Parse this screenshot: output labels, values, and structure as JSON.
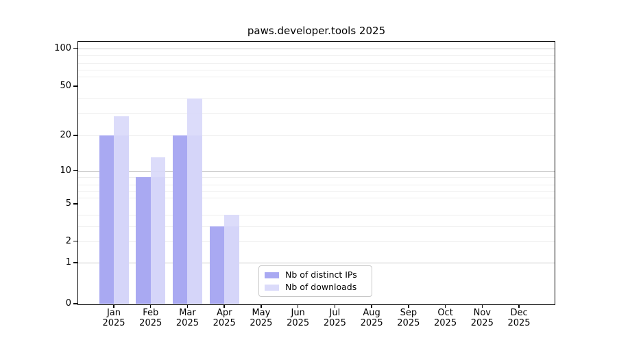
{
  "title": "paws.developer.tools 2025",
  "chart_data": {
    "type": "bar",
    "title": "paws.developer.tools 2025",
    "categories": [
      "Jan 2025",
      "Feb 2025",
      "Mar 2025",
      "Apr 2025",
      "May 2025",
      "Jun 2025",
      "Jul 2025",
      "Aug 2025",
      "Sep 2025",
      "Oct 2025",
      "Nov 2025",
      "Dec 2025"
    ],
    "month_labels": [
      "Jan",
      "Feb",
      "Mar",
      "Apr",
      "May",
      "Jun",
      "Jul",
      "Aug",
      "Sep",
      "Oct",
      "Nov",
      "Dec"
    ],
    "year_label": "2025",
    "series": [
      {
        "name": "Nb of distinct IPs",
        "color": "#a9a9f2",
        "values": [
          20,
          9,
          20,
          3,
          0,
          0,
          0,
          0,
          0,
          0,
          0,
          0
        ]
      },
      {
        "name": "Nb of downloads",
        "color": "#dbdbfa",
        "values": [
          28,
          13,
          40,
          4,
          0,
          0,
          0,
          0,
          0,
          0,
          0,
          0
        ]
      }
    ],
    "yticks": [
      0,
      1,
      2,
      5,
      10,
      20,
      50,
      100
    ],
    "minor_grid_values": [
      2,
      3,
      4,
      6,
      7,
      8,
      9,
      20,
      30,
      40,
      60,
      70,
      80,
      90
    ],
    "major_grid_values": [
      1,
      10,
      100
    ],
    "ylim": [
      0,
      100
    ],
    "scale": "log-like (0,1,2,5,10,20,50,100)",
    "grid": true,
    "legend_position": "lower center",
    "xlabel": "",
    "ylabel": ""
  },
  "legend": {
    "items": [
      {
        "label": "Nb of distinct IPs",
        "color": "#a9a9f2"
      },
      {
        "label": "Nb of downloads",
        "color": "#dbdbfa"
      }
    ]
  },
  "colors": {
    "distinct_ips_bar": "#a9a9f2",
    "downloads_bar_rgba": "rgba(217,217,250,0.92)",
    "downloads_swatch": "#dbdbfa",
    "major_gridline": "#c9c9c9",
    "minor_gridline": "#ededed",
    "axis": "#000000",
    "background": "#ffffff"
  }
}
